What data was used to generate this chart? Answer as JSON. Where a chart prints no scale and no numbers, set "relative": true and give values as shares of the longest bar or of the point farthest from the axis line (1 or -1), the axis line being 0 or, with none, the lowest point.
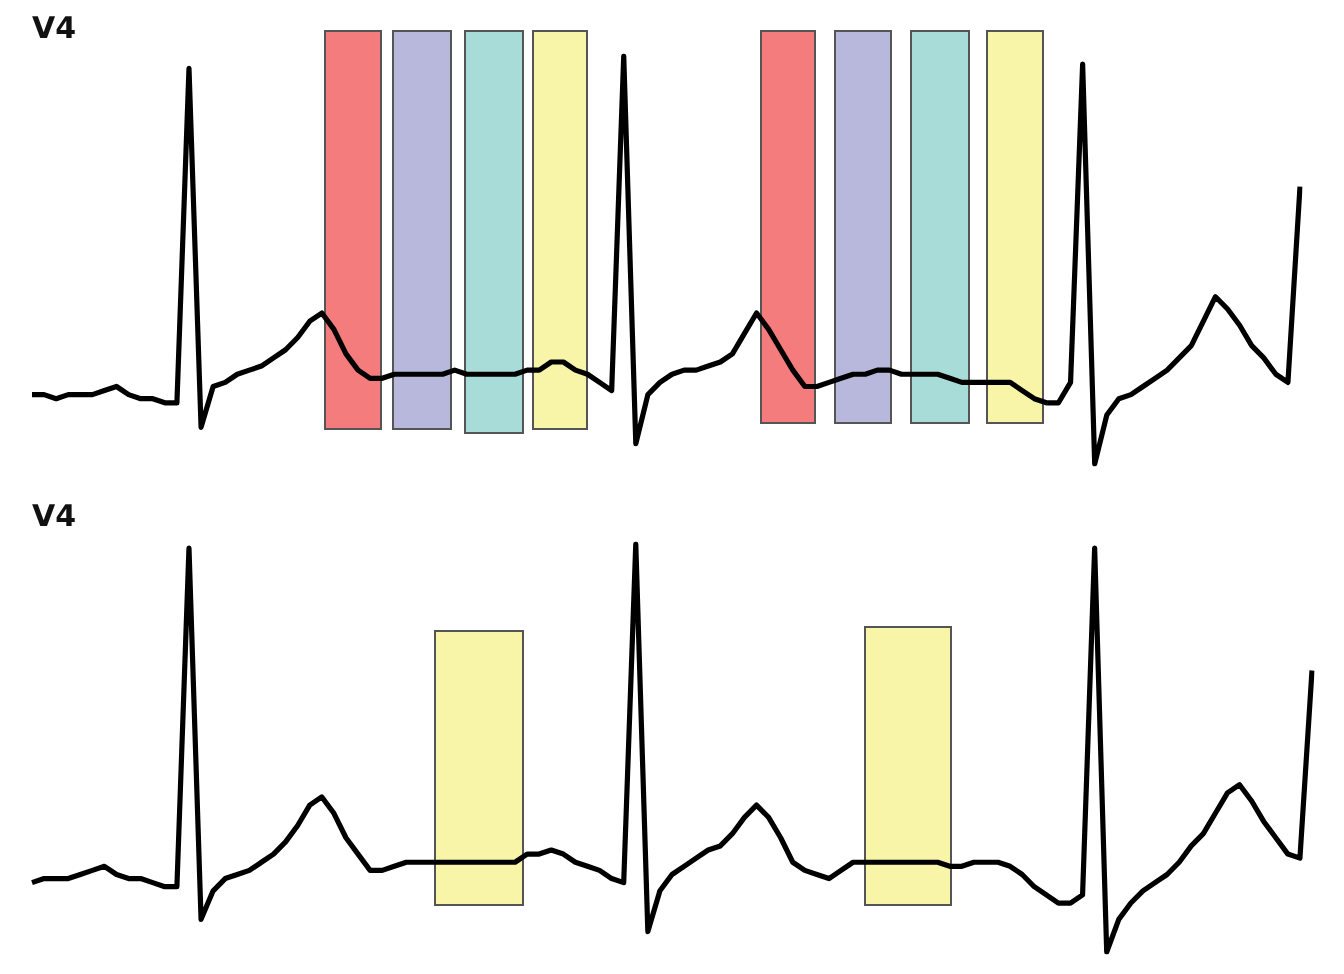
{
  "chart_data": [
    {
      "type": "line",
      "title": "V4",
      "relative": true,
      "marker": "none",
      "categories": [
        null,
        null,
        null,
        null,
        null,
        null,
        null,
        null,
        null,
        null,
        null,
        null,
        null,
        null,
        null,
        null,
        null,
        null,
        null,
        null,
        null,
        null,
        null,
        null,
        null,
        null,
        null,
        null,
        null,
        null,
        null,
        null,
        null,
        null,
        null,
        null,
        null,
        null,
        null,
        null,
        null,
        null,
        null,
        null,
        null,
        null,
        null,
        null,
        null,
        null,
        null,
        null,
        null,
        null,
        null,
        null,
        null,
        null,
        null,
        null,
        null,
        null,
        null,
        null,
        null,
        null,
        null,
        null,
        null,
        null,
        null,
        null,
        null,
        null,
        null,
        null,
        null,
        null,
        null,
        null,
        null,
        null,
        null,
        null,
        null,
        null,
        null,
        null,
        null,
        null,
        null,
        null,
        null,
        null,
        null,
        null,
        null,
        null,
        null,
        null,
        null,
        null,
        null,
        null,
        null,
        null
      ],
      "series": [
        {
          "color": "#000000",
          "values": [
            0.17,
            0.17,
            0.16,
            0.17,
            0.17,
            0.17,
            0.18,
            0.19,
            0.17,
            0.16,
            0.16,
            0.15,
            0.15,
            0.97,
            0.09,
            0.19,
            0.2,
            0.22,
            0.23,
            0.24,
            0.26,
            0.28,
            0.31,
            0.35,
            0.37,
            0.33,
            0.27,
            0.23,
            0.21,
            0.21,
            0.22,
            0.22,
            0.22,
            0.22,
            0.22,
            0.23,
            0.22,
            0.22,
            0.22,
            0.22,
            0.22,
            0.23,
            0.23,
            0.25,
            0.25,
            0.23,
            0.22,
            0.2,
            0.18,
            1,
            0.05,
            0.17,
            0.2,
            0.22,
            0.23,
            0.23,
            0.24,
            0.25,
            0.27,
            0.32,
            0.37,
            0.33,
            0.28,
            0.23,
            0.19,
            0.19,
            0.2,
            0.21,
            0.22,
            0.22,
            0.23,
            0.23,
            0.22,
            0.22,
            0.22,
            0.22,
            0.21,
            0.2,
            0.2,
            0.2,
            0.2,
            0.2,
            0.18,
            0.16,
            0.15,
            0.15,
            0.2,
            0.98,
            0,
            0.12,
            0.16,
            0.17,
            0.19,
            0.21,
            0.23,
            0.26,
            0.29,
            0.35,
            0.41,
            0.38,
            0.34,
            0.29,
            0.26,
            0.22,
            0.2,
            0.68
          ]
        }
      ]
    },
    {
      "type": "line",
      "title": "V4",
      "relative": true,
      "marker": "none",
      "categories": [
        null,
        null,
        null,
        null,
        null,
        null,
        null,
        null,
        null,
        null,
        null,
        null,
        null,
        null,
        null,
        null,
        null,
        null,
        null,
        null,
        null,
        null,
        null,
        null,
        null,
        null,
        null,
        null,
        null,
        null,
        null,
        null,
        null,
        null,
        null,
        null,
        null,
        null,
        null,
        null,
        null,
        null,
        null,
        null,
        null,
        null,
        null,
        null,
        null,
        null,
        null,
        null,
        null,
        null,
        null,
        null,
        null,
        null,
        null,
        null,
        null,
        null,
        null,
        null,
        null,
        null,
        null,
        null,
        null,
        null,
        null,
        null,
        null,
        null,
        null,
        null,
        null,
        null,
        null,
        null,
        null,
        null,
        null,
        null,
        null,
        null,
        null,
        null,
        null,
        null,
        null,
        null,
        null,
        null,
        null,
        null,
        null,
        null,
        null,
        null,
        null,
        null,
        null,
        null,
        null,
        null,
        null
      ],
      "series": [
        {
          "color": "#000000",
          "values": [
            0.17,
            0.18,
            0.18,
            0.18,
            0.19,
            0.2,
            0.21,
            0.19,
            0.18,
            0.18,
            0.17,
            0.16,
            0.16,
            0.99,
            0.08,
            0.15,
            0.18,
            0.19,
            0.2,
            0.22,
            0.24,
            0.27,
            0.31,
            0.36,
            0.38,
            0.34,
            0.28,
            0.24,
            0.2,
            0.2,
            0.21,
            0.22,
            0.22,
            0.22,
            0.22,
            0.22,
            0.22,
            0.22,
            0.22,
            0.22,
            0.22,
            0.24,
            0.24,
            0.25,
            0.24,
            0.22,
            0.21,
            0.2,
            0.18,
            0.17,
            1,
            0.05,
            0.15,
            0.19,
            0.21,
            0.23,
            0.25,
            0.26,
            0.29,
            0.33,
            0.36,
            0.33,
            0.28,
            0.22,
            0.2,
            0.19,
            0.18,
            0.2,
            0.22,
            0.22,
            0.22,
            0.22,
            0.22,
            0.22,
            0.22,
            0.22,
            0.21,
            0.21,
            0.22,
            0.22,
            0.22,
            0.21,
            0.19,
            0.16,
            0.14,
            0.12,
            0.12,
            0.14,
            0.99,
            0,
            0.08,
            0.12,
            0.15,
            0.17,
            0.19,
            0.22,
            0.26,
            0.29,
            0.34,
            0.39,
            0.41,
            0.37,
            0.32,
            0.28,
            0.24,
            0.23,
            0.69
          ]
        }
      ]
    }
  ]
}
